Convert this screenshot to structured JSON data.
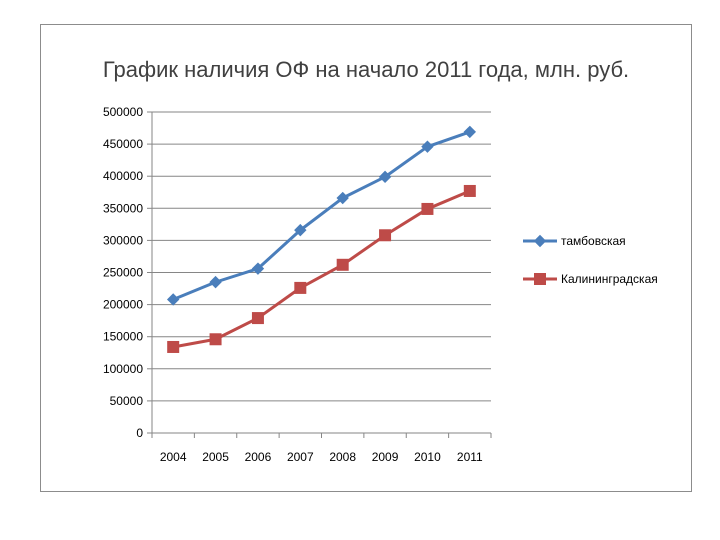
{
  "chart_data": {
    "type": "line",
    "title": "График наличия ОФ на начало 2011 года, млн. руб.",
    "xlabel": "",
    "ylabel": "",
    "categories": [
      "2004",
      "2005",
      "2006",
      "2007",
      "2008",
      "2009",
      "2010",
      "2011"
    ],
    "y_ticks": [
      "0",
      "50000",
      "100000",
      "150000",
      "200000",
      "250000",
      "300000",
      "350000",
      "400000",
      "450000",
      "500000"
    ],
    "ylim": [
      0,
      500000
    ],
    "grid": true,
    "legend_position": "right",
    "series": [
      {
        "name": "тамбовская",
        "color": "#4a7ebb",
        "marker": "diamond",
        "values": [
          208000,
          235000,
          256000,
          316000,
          366000,
          399000,
          446000,
          469000
        ]
      },
      {
        "name": "Калининградская",
        "color": "#be4b48",
        "marker": "square",
        "values": [
          134000,
          146000,
          179000,
          226000,
          262000,
          308000,
          349000,
          377000
        ]
      }
    ]
  }
}
